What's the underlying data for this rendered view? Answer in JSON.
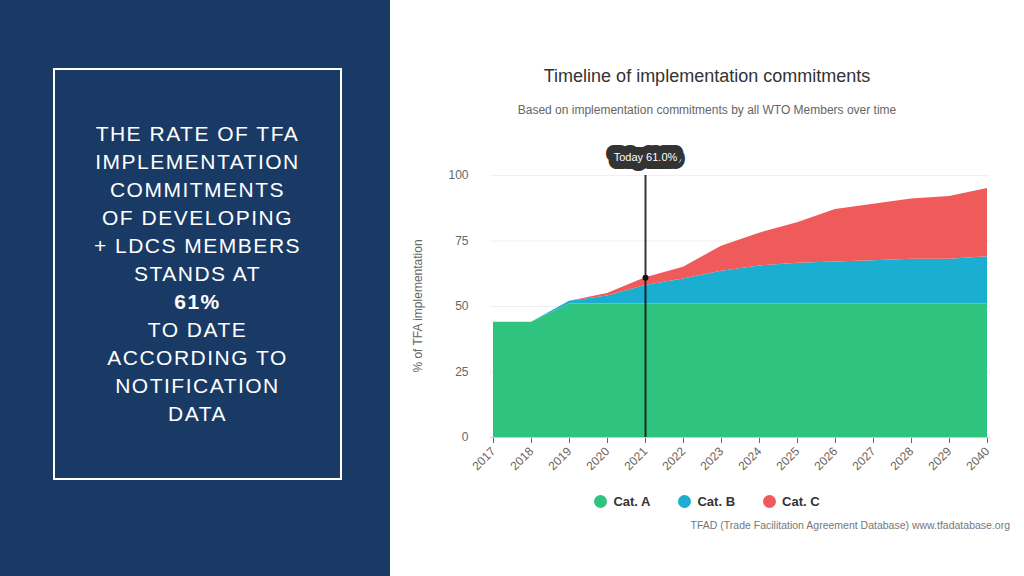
{
  "panel": {
    "lines_before": [
      "THE RATE OF TFA",
      "IMPLEMENTATION",
      "COMMITMENTS",
      "OF DEVELOPING",
      "+ LDCS MEMBERS",
      "STANDS AT"
    ],
    "highlight": "61%",
    "lines_after": [
      "TO DATE",
      "ACCORDING TO",
      "NOTIFICATION",
      "DATA"
    ]
  },
  "chart_data": {
    "type": "area",
    "stacked": true,
    "title": "Timeline of implementation commitments",
    "subtitle": "Based on implementation commitments by all WTO Members over time",
    "y_label": "% of TFA implementation",
    "source": "TFAD (Trade Facilitation Agreement Database) www.tfadatabase.org",
    "categories": [
      "2017",
      "2018",
      "2019",
      "2020",
      "2021",
      "2022",
      "2023",
      "2024",
      "2025",
      "2026",
      "2027",
      "2028",
      "2029",
      "2040"
    ],
    "series": [
      {
        "name": "Cat. A",
        "color": "#2ec47f",
        "values": [
          44,
          44,
          51,
          51,
          51,
          51,
          51,
          51,
          51,
          51,
          51,
          51,
          51,
          51
        ]
      },
      {
        "name": "Cat. B",
        "color": "#1aaed1",
        "values": [
          0,
          0,
          1,
          3,
          7,
          9.5,
          12.5,
          14.5,
          15.5,
          16,
          16.5,
          17,
          17,
          18
        ]
      },
      {
        "name": "Cat. C",
        "color": "#ef5b5b",
        "values": [
          0,
          0,
          0,
          1,
          3,
          4.5,
          9.5,
          12.5,
          15.5,
          20,
          21.5,
          23,
          24,
          26
        ]
      }
    ],
    "annotation": {
      "label": "Today 61.0%",
      "x": "2021",
      "value": 61.0
    },
    "ylim": [
      0,
      100
    ],
    "yticks": [
      0,
      25,
      50,
      75,
      100
    ],
    "grid": true,
    "legend": "bottom"
  }
}
